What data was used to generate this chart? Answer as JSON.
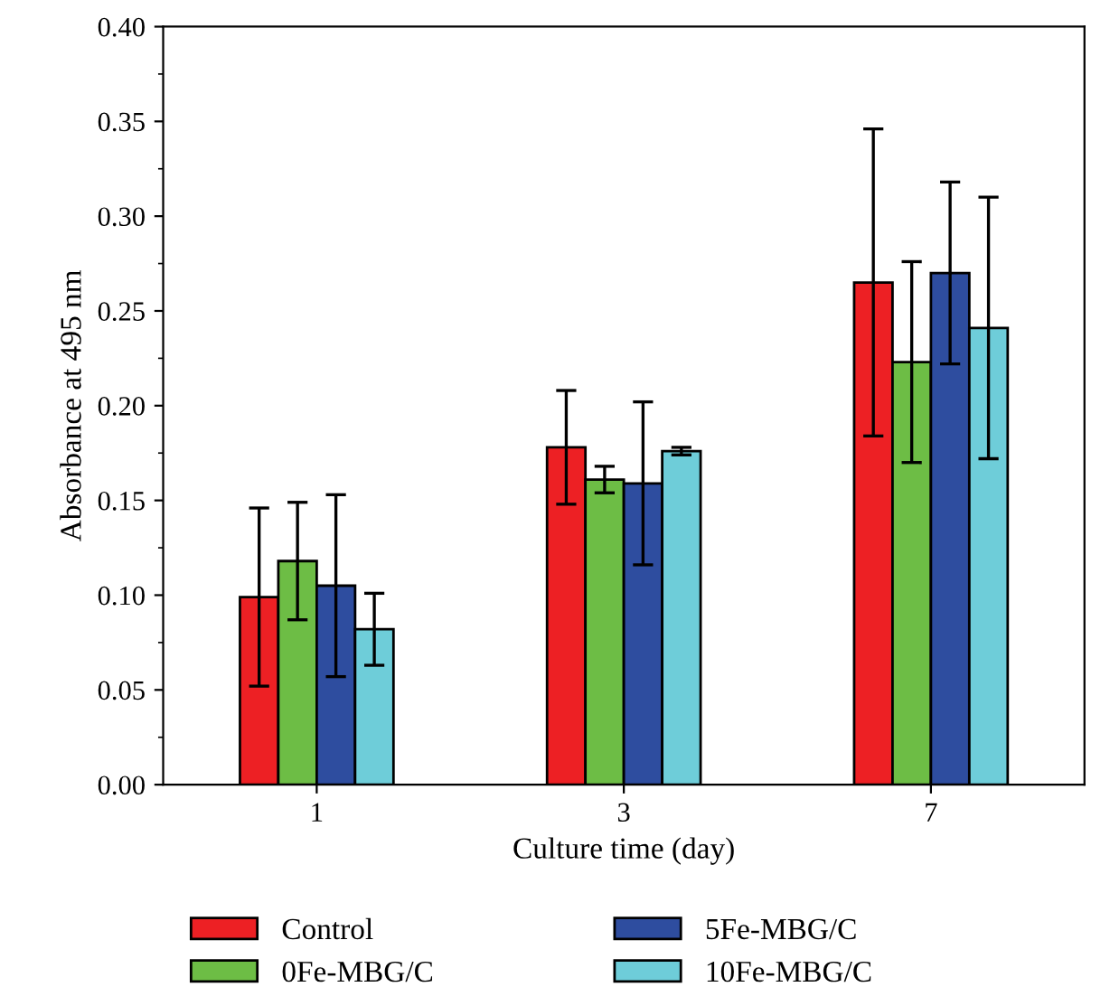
{
  "chart_data": {
    "type": "bar",
    "xlabel": "Culture time (day)",
    "ylabel": "Absorbance at 495 nm",
    "categories": [
      "1",
      "3",
      "7"
    ],
    "series": [
      {
        "name": "Control",
        "color": "#ed2024",
        "values": [
          0.099,
          0.178,
          0.265
        ],
        "errors": [
          0.047,
          0.03,
          0.081
        ]
      },
      {
        "name": "0Fe-MBG/C",
        "color": "#6dbd45",
        "values": [
          0.118,
          0.161,
          0.223
        ],
        "errors": [
          0.031,
          0.007,
          0.053
        ]
      },
      {
        "name": "5Fe-MBG/C",
        "color": "#2e4d9f",
        "values": [
          0.105,
          0.159,
          0.27
        ],
        "errors": [
          0.048,
          0.043,
          0.048
        ]
      },
      {
        "name": "10Fe-MBG/C",
        "color": "#6ecdd9",
        "values": [
          0.082,
          0.176,
          0.241
        ],
        "errors": [
          0.019,
          0.002,
          0.069
        ]
      }
    ],
    "ylim": [
      0,
      0.4
    ],
    "yticks": [
      {
        "value": 0,
        "label": "0.00"
      },
      {
        "value": 0.05,
        "label": "0.05"
      },
      {
        "value": 0.1,
        "label": "0.10"
      },
      {
        "value": 0.15,
        "label": "0.15"
      },
      {
        "value": 0.2,
        "label": "0.20"
      },
      {
        "value": 0.25,
        "label": "0.25"
      },
      {
        "value": 0.3,
        "label": "0.30"
      },
      {
        "value": 0.35,
        "label": "0.35"
      },
      {
        "value": 0.4,
        "label": "0.40"
      }
    ],
    "legend": "bottom",
    "grid": false
  }
}
